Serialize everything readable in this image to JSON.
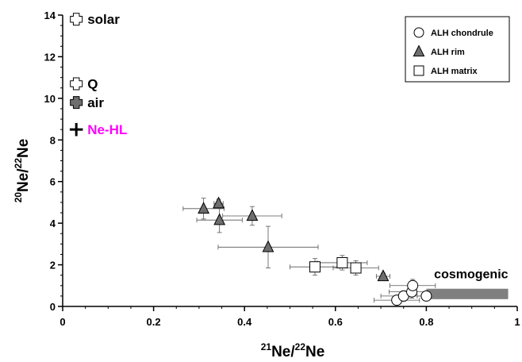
{
  "chart_data": {
    "type": "scatter",
    "xlabel": {
      "sup1": "21",
      "main1": "Ne/",
      "sup2": "22",
      "main2": "Ne"
    },
    "ylabel": {
      "sup1": "20",
      "main1": "Ne/",
      "sup2": "22",
      "main2": "Ne"
    },
    "xlim": [
      0,
      1
    ],
    "ylim": [
      0,
      14
    ],
    "x_ticks": [
      0,
      0.2,
      0.4,
      0.6,
      0.8,
      1
    ],
    "x_tick_labels": [
      "0",
      "0.2",
      "0.4",
      "0.6",
      "0.8",
      "1"
    ],
    "y_ticks": [
      0,
      2,
      4,
      6,
      8,
      10,
      12,
      14
    ],
    "y_tick_labels": [
      "0",
      "2",
      "4",
      "6",
      "8",
      "10",
      "12",
      "14"
    ],
    "grid": false,
    "legend_position": "top-right",
    "legend": [
      {
        "name": "ALH chondrule",
        "marker": "circle"
      },
      {
        "name": "ALH rim",
        "marker": "triangle"
      },
      {
        "name": "ALH matrix",
        "marker": "square"
      }
    ],
    "series": [
      {
        "name": "ALH chondrule",
        "marker": "circle",
        "points": [
          {
            "x": 0.735,
            "y": 0.3,
            "xerr": 0.05,
            "yerr": 0.2
          },
          {
            "x": 0.75,
            "y": 0.5,
            "xerr": 0.05,
            "yerr": 0.25
          },
          {
            "x": 0.768,
            "y": 0.7,
            "xerr": 0.05,
            "yerr": 0.3
          },
          {
            "x": 0.77,
            "y": 1.0,
            "xerr": 0.05,
            "yerr": 0.3
          },
          {
            "x": 0.8,
            "y": 0.5,
            "xerr": 0.02,
            "yerr": 0.15
          }
        ]
      },
      {
        "name": "ALH rim",
        "marker": "triangle",
        "points": [
          {
            "x": 0.31,
            "y": 4.7,
            "xerr": 0.045,
            "yerr": 0.5
          },
          {
            "x": 0.343,
            "y": 4.95,
            "xerr": 0.01,
            "yerr": 0.2
          },
          {
            "x": 0.345,
            "y": 4.15,
            "xerr": 0.05,
            "yerr": 0.6
          },
          {
            "x": 0.417,
            "y": 4.35,
            "xerr": 0.065,
            "yerr": 0.45
          },
          {
            "x": 0.452,
            "y": 2.85,
            "xerr": 0.11,
            "yerr": 1.0
          },
          {
            "x": 0.705,
            "y": 1.45,
            "xerr": 0.015,
            "yerr": 0.15
          }
        ]
      },
      {
        "name": "ALH matrix",
        "marker": "square",
        "points": [
          {
            "x": 0.555,
            "y": 1.9,
            "xerr": 0.055,
            "yerr": 0.4
          },
          {
            "x": 0.615,
            "y": 2.1,
            "xerr": 0.055,
            "yerr": 0.35
          },
          {
            "x": 0.645,
            "y": 1.85,
            "xerr": 0.05,
            "yerr": 0.35
          }
        ]
      }
    ],
    "reference_points": [
      {
        "label": "solar",
        "x": 0.03,
        "y": 13.8,
        "marker": "cross-open",
        "label_color": "#000000"
      },
      {
        "label": "Q",
        "x": 0.03,
        "y": 10.7,
        "marker": "cross-open",
        "label_color": "#000000"
      },
      {
        "label": "air",
        "x": 0.03,
        "y": 9.8,
        "marker": "cross-filled",
        "label_color": "#000000"
      },
      {
        "label": "Ne-HL",
        "x": 0.03,
        "y": 8.5,
        "marker": "plus",
        "label_color": "#ff00ff"
      }
    ],
    "cosmogenic": {
      "label": "cosmogenic",
      "x_range": [
        0.8,
        0.98
      ],
      "y_range": [
        0.35,
        0.85
      ],
      "color": "#808080"
    }
  }
}
